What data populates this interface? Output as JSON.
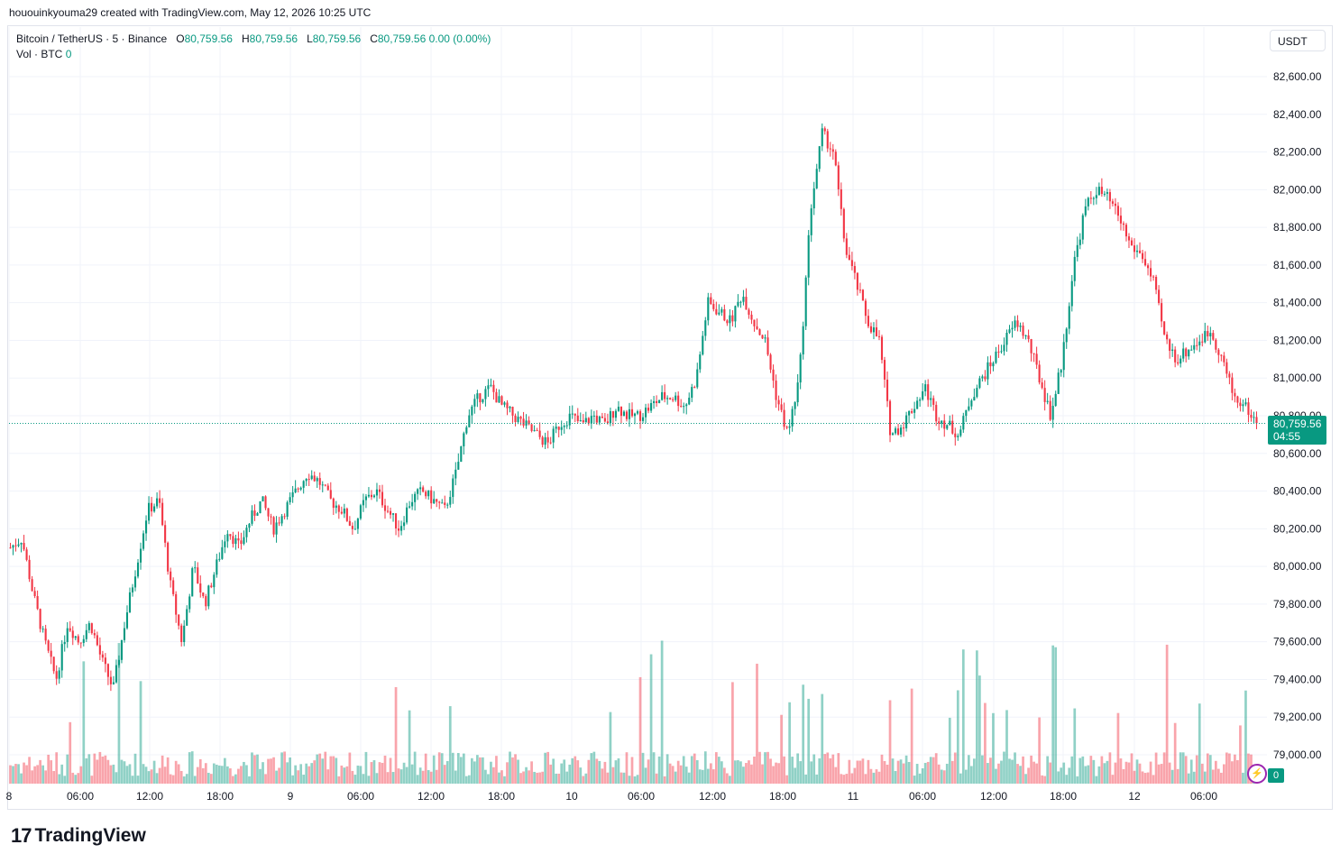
{
  "header": {
    "credit": "hououinkyouma29 created with TradingView.com, May 12, 2026 10:25 UTC"
  },
  "legend": {
    "symbol": "Bitcoin / TetherUS · 5 · Binance",
    "o_label": "O",
    "o_value": "80,759.56",
    "h_label": "H",
    "h_value": "80,759.56",
    "l_label": "L",
    "l_value": "80,759.56",
    "c_label": "C",
    "c_value": "80,759.56",
    "change": "0.00 (0.00%)",
    "vol_label": "Vol · BTC",
    "vol_value": "0"
  },
  "currency_button": "USDT",
  "last_price": {
    "value": "80,759.56",
    "countdown": "04:55"
  },
  "volume_tag": "0",
  "footer": {
    "brand": "TradingView"
  },
  "colors": {
    "up": "#089981",
    "down": "#f23645",
    "grid": "#f0f3fa",
    "accent_purple": "#9c27b0"
  },
  "icons": {
    "logo": "tradingview-logo-icon",
    "bolt": "lightning-icon"
  },
  "chart_data": {
    "type": "candlestick",
    "interval": "5",
    "y_axis": {
      "ticks": [
        "82,600.00",
        "82,400.00",
        "82,200.00",
        "82,000.00",
        "81,800.00",
        "81,600.00",
        "81,400.00",
        "81,200.00",
        "81,000.00",
        "80,800.00",
        "80,600.00",
        "80,400.00",
        "80,200.00",
        "80,000.00",
        "79,800.00",
        "79,600.00",
        "79,400.00",
        "79,200.00",
        "79,000.00"
      ],
      "range": [
        78900,
        82700
      ]
    },
    "x_axis": {
      "ticks": [
        "8",
        "06:00",
        "12:00",
        "18:00",
        "9",
        "06:00",
        "12:00",
        "18:00",
        "10",
        "06:00",
        "12:00",
        "18:00",
        "11",
        "06:00",
        "12:00",
        "18:00",
        "12",
        "06:00"
      ]
    },
    "price_path": [
      [
        0,
        80100
      ],
      [
        3,
        80150
      ],
      [
        6,
        79850
      ],
      [
        9,
        79600
      ],
      [
        12,
        79400
      ],
      [
        15,
        79700
      ],
      [
        18,
        79600
      ],
      [
        21,
        79700
      ],
      [
        24,
        79500
      ],
      [
        27,
        79350
      ],
      [
        30,
        79700
      ],
      [
        33,
        80000
      ],
      [
        36,
        80300
      ],
      [
        39,
        80350
      ],
      [
        42,
        79900
      ],
      [
        45,
        79600
      ],
      [
        48,
        80000
      ],
      [
        51,
        79800
      ],
      [
        54,
        80000
      ],
      [
        57,
        80200
      ],
      [
        60,
        80100
      ],
      [
        63,
        80250
      ],
      [
        66,
        80350
      ],
      [
        69,
        80200
      ],
      [
        72,
        80300
      ],
      [
        75,
        80400
      ],
      [
        78,
        80500
      ],
      [
        81,
        80450
      ],
      [
        84,
        80350
      ],
      [
        87,
        80300
      ],
      [
        90,
        80200
      ],
      [
        93,
        80350
      ],
      [
        96,
        80400
      ],
      [
        99,
        80300
      ],
      [
        102,
        80200
      ],
      [
        105,
        80350
      ],
      [
        108,
        80400
      ],
      [
        111,
        80350
      ],
      [
        114,
        80300
      ],
      [
        117,
        80500
      ],
      [
        120,
        80800
      ],
      [
        123,
        80900
      ],
      [
        126,
        80950
      ],
      [
        129,
        80850
      ],
      [
        132,
        80800
      ],
      [
        135,
        80750
      ],
      [
        138,
        80700
      ],
      [
        141,
        80650
      ],
      [
        144,
        80750
      ],
      [
        147,
        80800
      ],
      [
        150,
        80750
      ],
      [
        153,
        80800
      ],
      [
        156,
        80750
      ],
      [
        159,
        80850
      ],
      [
        162,
        80800
      ],
      [
        165,
        80800
      ],
      [
        168,
        80850
      ],
      [
        171,
        80900
      ],
      [
        174,
        80900
      ],
      [
        177,
        80850
      ],
      [
        180,
        81000
      ],
      [
        183,
        81400
      ],
      [
        186,
        81350
      ],
      [
        189,
        81300
      ],
      [
        192,
        81450
      ],
      [
        195,
        81300
      ],
      [
        198,
        81200
      ],
      [
        201,
        80900
      ],
      [
        204,
        80700
      ],
      [
        207,
        81000
      ],
      [
        210,
        81900
      ],
      [
        213,
        82300
      ],
      [
        216,
        82200
      ],
      [
        219,
        81700
      ],
      [
        222,
        81500
      ],
      [
        225,
        81300
      ],
      [
        228,
        81200
      ],
      [
        231,
        80700
      ],
      [
        234,
        80750
      ],
      [
        237,
        80850
      ],
      [
        240,
        80950
      ],
      [
        243,
        80800
      ],
      [
        246,
        80750
      ],
      [
        249,
        80700
      ],
      [
        252,
        80900
      ],
      [
        255,
        81000
      ],
      [
        258,
        81100
      ],
      [
        261,
        81200
      ],
      [
        264,
        81300
      ],
      [
        267,
        81200
      ],
      [
        270,
        81000
      ],
      [
        273,
        80800
      ],
      [
        276,
        81100
      ],
      [
        279,
        81600
      ],
      [
        282,
        81900
      ],
      [
        285,
        82000
      ],
      [
        288,
        81950
      ],
      [
        291,
        81850
      ],
      [
        294,
        81700
      ],
      [
        297,
        81650
      ],
      [
        300,
        81500
      ],
      [
        303,
        81200
      ],
      [
        306,
        81100
      ],
      [
        309,
        81150
      ],
      [
        312,
        81200
      ],
      [
        315,
        81250
      ],
      [
        318,
        81100
      ],
      [
        321,
        80900
      ],
      [
        324,
        80850
      ],
      [
        327,
        80759.56
      ]
    ]
  }
}
